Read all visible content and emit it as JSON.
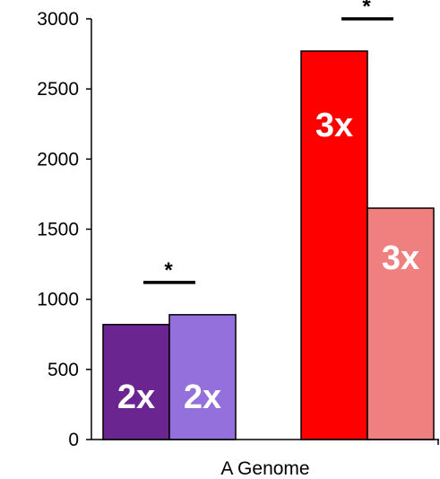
{
  "chart_data": {
    "type": "bar",
    "title": "",
    "xlabel": "",
    "ylabel": "",
    "ylim": [
      0,
      3000
    ],
    "yticks": [
      0,
      500,
      1000,
      1500,
      2000,
      2500,
      3000
    ],
    "categories": [
      "A Genome"
    ],
    "grid": false,
    "bars": [
      {
        "value": 820,
        "label": "2x",
        "color": "#6B2590"
      },
      {
        "value": 890,
        "label": "2x",
        "color": "#9370DB"
      },
      {
        "value": 2770,
        "label": "3x",
        "color": "#FF0000"
      },
      {
        "value": 1650,
        "label": "3x",
        "color": "#F08080"
      }
    ],
    "significance": [
      {
        "pair": [
          0,
          1
        ],
        "symbol": "*"
      },
      {
        "pair": [
          2,
          3
        ],
        "symbol": "*"
      }
    ]
  }
}
